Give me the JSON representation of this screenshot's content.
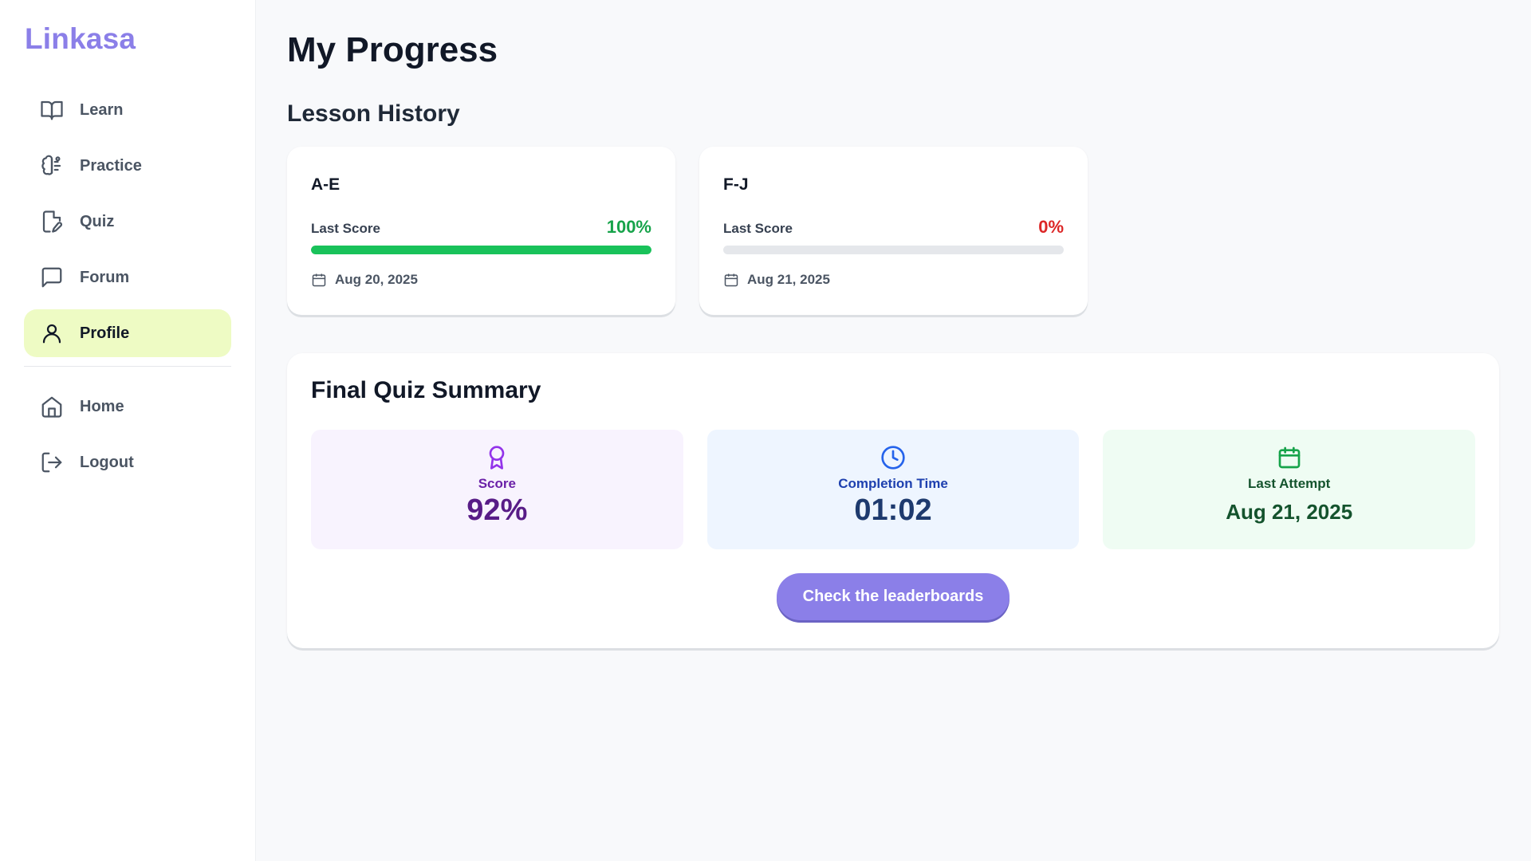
{
  "app": {
    "name": "Linkasa"
  },
  "sidebar": {
    "items": [
      {
        "label": "Learn",
        "icon": "book-open-icon"
      },
      {
        "label": "Practice",
        "icon": "brain-icon"
      },
      {
        "label": "Quiz",
        "icon": "file-pen-icon"
      },
      {
        "label": "Forum",
        "icon": "message-square-icon"
      },
      {
        "label": "Profile",
        "icon": "user-icon",
        "active": true
      }
    ],
    "secondary": [
      {
        "label": "Home",
        "icon": "home-icon"
      },
      {
        "label": "Logout",
        "icon": "logout-icon"
      }
    ]
  },
  "page": {
    "title": "My Progress"
  },
  "lesson_history": {
    "title": "Lesson History",
    "lessons": [
      {
        "name": "A-E",
        "score_label": "Last Score",
        "score": "100%",
        "progress": 1.0,
        "date": "Aug 20, 2025",
        "score_color": "#16a34a"
      },
      {
        "name": "F-J",
        "score_label": "Last Score",
        "score": "0%",
        "progress": 0.0,
        "date": "Aug 21, 2025",
        "score_color": "#dc2626"
      }
    ]
  },
  "final_quiz": {
    "title": "Final Quiz Summary",
    "score": {
      "label": "Score",
      "value": "92%",
      "icon": "award-icon"
    },
    "completion_time": {
      "label": "Completion Time",
      "value": "01:02",
      "icon": "clock-icon"
    },
    "last_attempt": {
      "label": "Last Attempt",
      "value": "Aug 21, 2025",
      "icon": "calendar-icon"
    },
    "button_label": "Check the leaderboards"
  },
  "colors": {
    "accent": "#8b7fe8",
    "active_nav_bg": "#eefbc4",
    "progress_fill": "#19c25a"
  }
}
